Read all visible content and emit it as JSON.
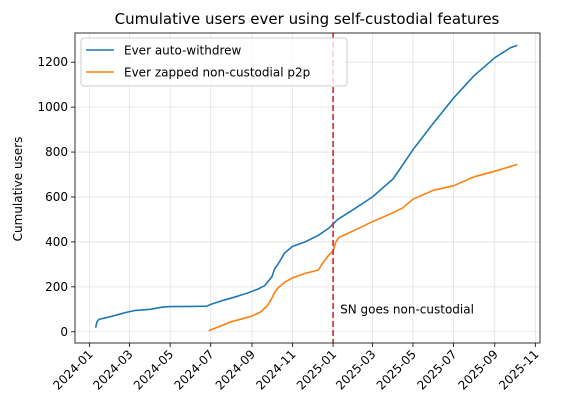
{
  "chart_data": {
    "type": "line",
    "title": "Cumulative users ever using self-custodial features",
    "xlabel": "",
    "ylabel": "Cumulative users",
    "xlim": [
      "2023-12-10",
      "2025-11-08"
    ],
    "ylim": [
      -50,
      1330
    ],
    "x_ticks": [
      "2024-01",
      "2024-03",
      "2024-05",
      "2024-07",
      "2024-09",
      "2024-11",
      "2025-01",
      "2025-03",
      "2025-05",
      "2025-07",
      "2025-09",
      "2025-11"
    ],
    "y_ticks": [
      0,
      200,
      400,
      600,
      800,
      1000,
      1200
    ],
    "grid": true,
    "legend_position": "top-left",
    "series": [
      {
        "name": "Ever auto-withdrew",
        "color": "#1f77b4",
        "points": [
          [
            "2024-01-10",
            18
          ],
          [
            "2024-01-12",
            45
          ],
          [
            "2024-01-15",
            55
          ],
          [
            "2024-01-25",
            62
          ],
          [
            "2024-02-05",
            70
          ],
          [
            "2024-02-15",
            78
          ],
          [
            "2024-02-25",
            86
          ],
          [
            "2024-03-10",
            95
          ],
          [
            "2024-04-01",
            100
          ],
          [
            "2024-04-20",
            110
          ],
          [
            "2024-05-01",
            112
          ],
          [
            "2024-06-01",
            113
          ],
          [
            "2024-06-25",
            114
          ],
          [
            "2024-07-01",
            122
          ],
          [
            "2024-07-20",
            140
          ],
          [
            "2024-08-10",
            158
          ],
          [
            "2024-08-25",
            172
          ],
          [
            "2024-09-10",
            190
          ],
          [
            "2024-09-20",
            205
          ],
          [
            "2024-10-01",
            245
          ],
          [
            "2024-10-05",
            280
          ],
          [
            "2024-10-10",
            300
          ],
          [
            "2024-10-20",
            350
          ],
          [
            "2024-11-01",
            380
          ],
          [
            "2024-11-20",
            400
          ],
          [
            "2024-12-10",
            430
          ],
          [
            "2024-12-25",
            460
          ],
          [
            "2025-01-01",
            480
          ],
          [
            "2025-01-08",
            500
          ],
          [
            "2025-02-01",
            545
          ],
          [
            "2025-03-01",
            600
          ],
          [
            "2025-04-01",
            680
          ],
          [
            "2025-04-15",
            740
          ],
          [
            "2025-05-01",
            810
          ],
          [
            "2025-06-01",
            930
          ],
          [
            "2025-07-01",
            1040
          ],
          [
            "2025-08-01",
            1140
          ],
          [
            "2025-09-01",
            1220
          ],
          [
            "2025-09-25",
            1265
          ],
          [
            "2025-10-05",
            1275
          ]
        ]
      },
      {
        "name": "Ever zapped non-custodial p2p",
        "color": "#ff7f0e",
        "points": [
          [
            "2024-06-28",
            5
          ],
          [
            "2024-07-15",
            25
          ],
          [
            "2024-08-01",
            45
          ],
          [
            "2024-08-20",
            60
          ],
          [
            "2024-09-01",
            70
          ],
          [
            "2024-09-15",
            90
          ],
          [
            "2024-09-25",
            120
          ],
          [
            "2024-10-01",
            150
          ],
          [
            "2024-10-05",
            175
          ],
          [
            "2024-10-10",
            195
          ],
          [
            "2024-10-20",
            220
          ],
          [
            "2024-11-01",
            240
          ],
          [
            "2024-11-20",
            260
          ],
          [
            "2024-12-10",
            275
          ],
          [
            "2024-12-15",
            300
          ],
          [
            "2024-12-25",
            340
          ],
          [
            "2025-01-01",
            360
          ],
          [
            "2025-01-05",
            400
          ],
          [
            "2025-01-10",
            420
          ],
          [
            "2025-02-01",
            450
          ],
          [
            "2025-03-01",
            490
          ],
          [
            "2025-04-01",
            530
          ],
          [
            "2025-04-15",
            550
          ],
          [
            "2025-05-01",
            590
          ],
          [
            "2025-06-01",
            630
          ],
          [
            "2025-07-01",
            650
          ],
          [
            "2025-08-01",
            690
          ],
          [
            "2025-09-01",
            715
          ],
          [
            "2025-10-05",
            745
          ]
        ]
      }
    ],
    "annotations": [
      {
        "type": "vline",
        "x": "2025-01-01",
        "color": "#d62728",
        "linestyle": "dashed",
        "label": "SN goes non-custodial",
        "label_y": 100
      }
    ]
  }
}
